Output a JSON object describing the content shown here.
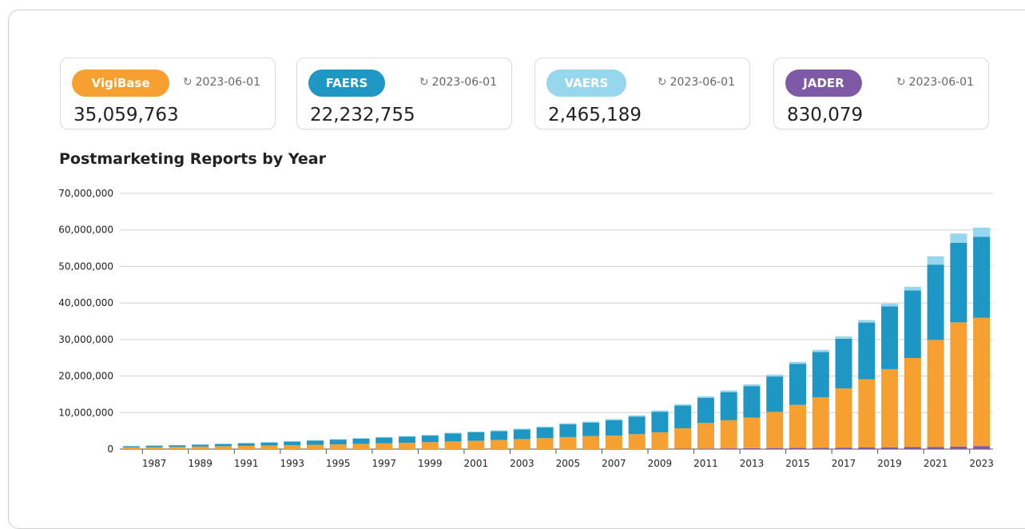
{
  "sources": [
    {
      "name": "VigiBase",
      "date": "2023-06-01",
      "count": "35,059,763",
      "color": "#f5a031"
    },
    {
      "name": "FAERS",
      "date": "2023-06-01",
      "count": "22,232,755",
      "color": "#1f97c5"
    },
    {
      "name": "VAERS",
      "date": "2023-06-01",
      "count": "2,465,189",
      "color": "#97d7ee"
    },
    {
      "name": "JADER",
      "date": "2023-06-01",
      "count": "830,079",
      "color": "#7e5aa6"
    }
  ],
  "refresh_icon": "refresh-icon",
  "chart_data": {
    "type": "bar",
    "stacked": true,
    "title": "Postmarketing Reports by Year",
    "categories": [
      "1986",
      "1987",
      "1988",
      "1989",
      "1990",
      "1991",
      "1992",
      "1993",
      "1994",
      "1995",
      "1996",
      "1997",
      "1998",
      "1999",
      "2000",
      "2001",
      "2002",
      "2003",
      "2004",
      "2005",
      "2006",
      "2007",
      "2008",
      "2009",
      "2010",
      "2011",
      "2012",
      "2013",
      "2014",
      "2015",
      "2016",
      "2017",
      "2018",
      "2019",
      "2020",
      "2021",
      "2022",
      "2023"
    ],
    "x_tick_labels": [
      "1987",
      "1989",
      "1991",
      "1993",
      "1995",
      "1997",
      "1999",
      "2001",
      "2003",
      "2005",
      "2007",
      "2009",
      "2011",
      "2013",
      "2015",
      "2017",
      "2019",
      "2021",
      "2023"
    ],
    "ylim": [
      0,
      70000000
    ],
    "y_ticks": [
      0,
      10000000,
      20000000,
      30000000,
      40000000,
      50000000,
      60000000,
      70000000
    ],
    "y_tick_labels": [
      "0",
      "10,000,000",
      "20,000,000",
      "30,000,000",
      "40,000,000",
      "50,000,000",
      "60,000,000",
      "70,000,000"
    ],
    "grid": true,
    "legend": "none",
    "series": [
      {
        "name": "JADER",
        "color": "#7e5aa6",
        "values": [
          0,
          0,
          0,
          0,
          0,
          0,
          0,
          0,
          0,
          0,
          0,
          0,
          0,
          0,
          0,
          0,
          0,
          0,
          0,
          0,
          0,
          0,
          0,
          0,
          100000,
          150000,
          200000,
          250000,
          280000,
          320000,
          360000,
          400000,
          440000,
          490000,
          540000,
          600000,
          700000,
          830000
        ]
      },
      {
        "name": "VigiBase",
        "color": "#f5a031",
        "values": [
          500000,
          550000,
          600000,
          700000,
          800000,
          900000,
          1000000,
          1100000,
          1200000,
          1300000,
          1450000,
          1600000,
          1750000,
          1900000,
          2100000,
          2300000,
          2500000,
          2750000,
          3000000,
          3300000,
          3550000,
          3700000,
          4100000,
          4600000,
          5600000,
          7000000,
          7700000,
          8400000,
          9900000,
          11800000,
          13800000,
          16200000,
          18700000,
          21400000,
          24400000,
          29300000,
          34000000,
          35100000
        ]
      },
      {
        "name": "FAERS",
        "color": "#1f97c5",
        "values": [
          300000,
          400000,
          450000,
          500000,
          600000,
          700000,
          800000,
          950000,
          1100000,
          1300000,
          1400000,
          1550000,
          1650000,
          1800000,
          2200000,
          2300000,
          2400000,
          2600000,
          2900000,
          3500000,
          3700000,
          4200000,
          4800000,
          5600000,
          6200000,
          6900000,
          7700000,
          8600000,
          9700000,
          11200000,
          12400000,
          13600000,
          15500000,
          17200000,
          18500000,
          20600000,
          21800000,
          22200000
        ]
      },
      {
        "name": "VAERS",
        "color": "#97d7ee",
        "values": [
          50000,
          50000,
          60000,
          70000,
          80000,
          90000,
          100000,
          110000,
          120000,
          130000,
          140000,
          150000,
          160000,
          180000,
          200000,
          220000,
          240000,
          260000,
          280000,
          300000,
          320000,
          340000,
          360000,
          380000,
          400000,
          420000,
          450000,
          480000,
          520000,
          560000,
          600000,
          650000,
          700000,
          750000,
          1000000,
          2300000,
          2500000,
          2500000
        ]
      }
    ]
  }
}
